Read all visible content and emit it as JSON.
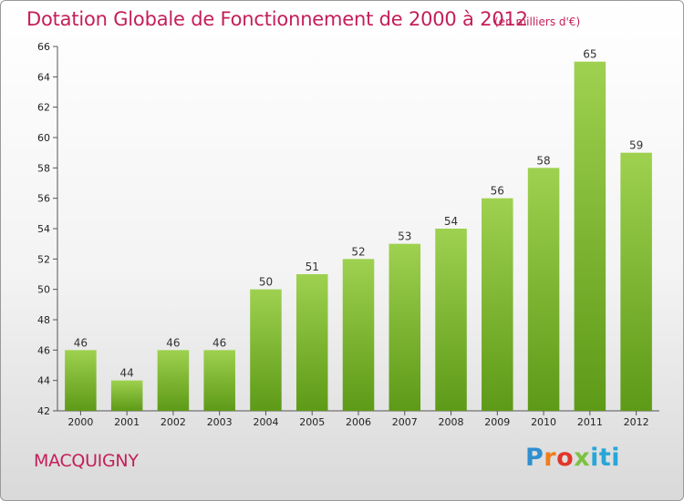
{
  "chart_data": {
    "type": "bar",
    "title": "Dotation Globale de Fonctionnement de 2000 à 2012",
    "subtitle": "(en milliers d'€)",
    "categories": [
      "2000",
      "2001",
      "2002",
      "2003",
      "2004",
      "2005",
      "2006",
      "2007",
      "2008",
      "2009",
      "2010",
      "2011",
      "2012"
    ],
    "values": [
      46,
      44,
      46,
      46,
      50,
      51,
      52,
      53,
      54,
      56,
      58,
      65,
      59
    ],
    "ylim": [
      42,
      66
    ],
    "yticks": [
      42,
      44,
      46,
      48,
      50,
      52,
      54,
      56,
      58,
      60,
      62,
      64,
      66
    ],
    "grid": false,
    "bar_color": "#7dbf2e"
  },
  "footer": {
    "commune": "MACQUIGNY",
    "logo": "Proxiti"
  }
}
